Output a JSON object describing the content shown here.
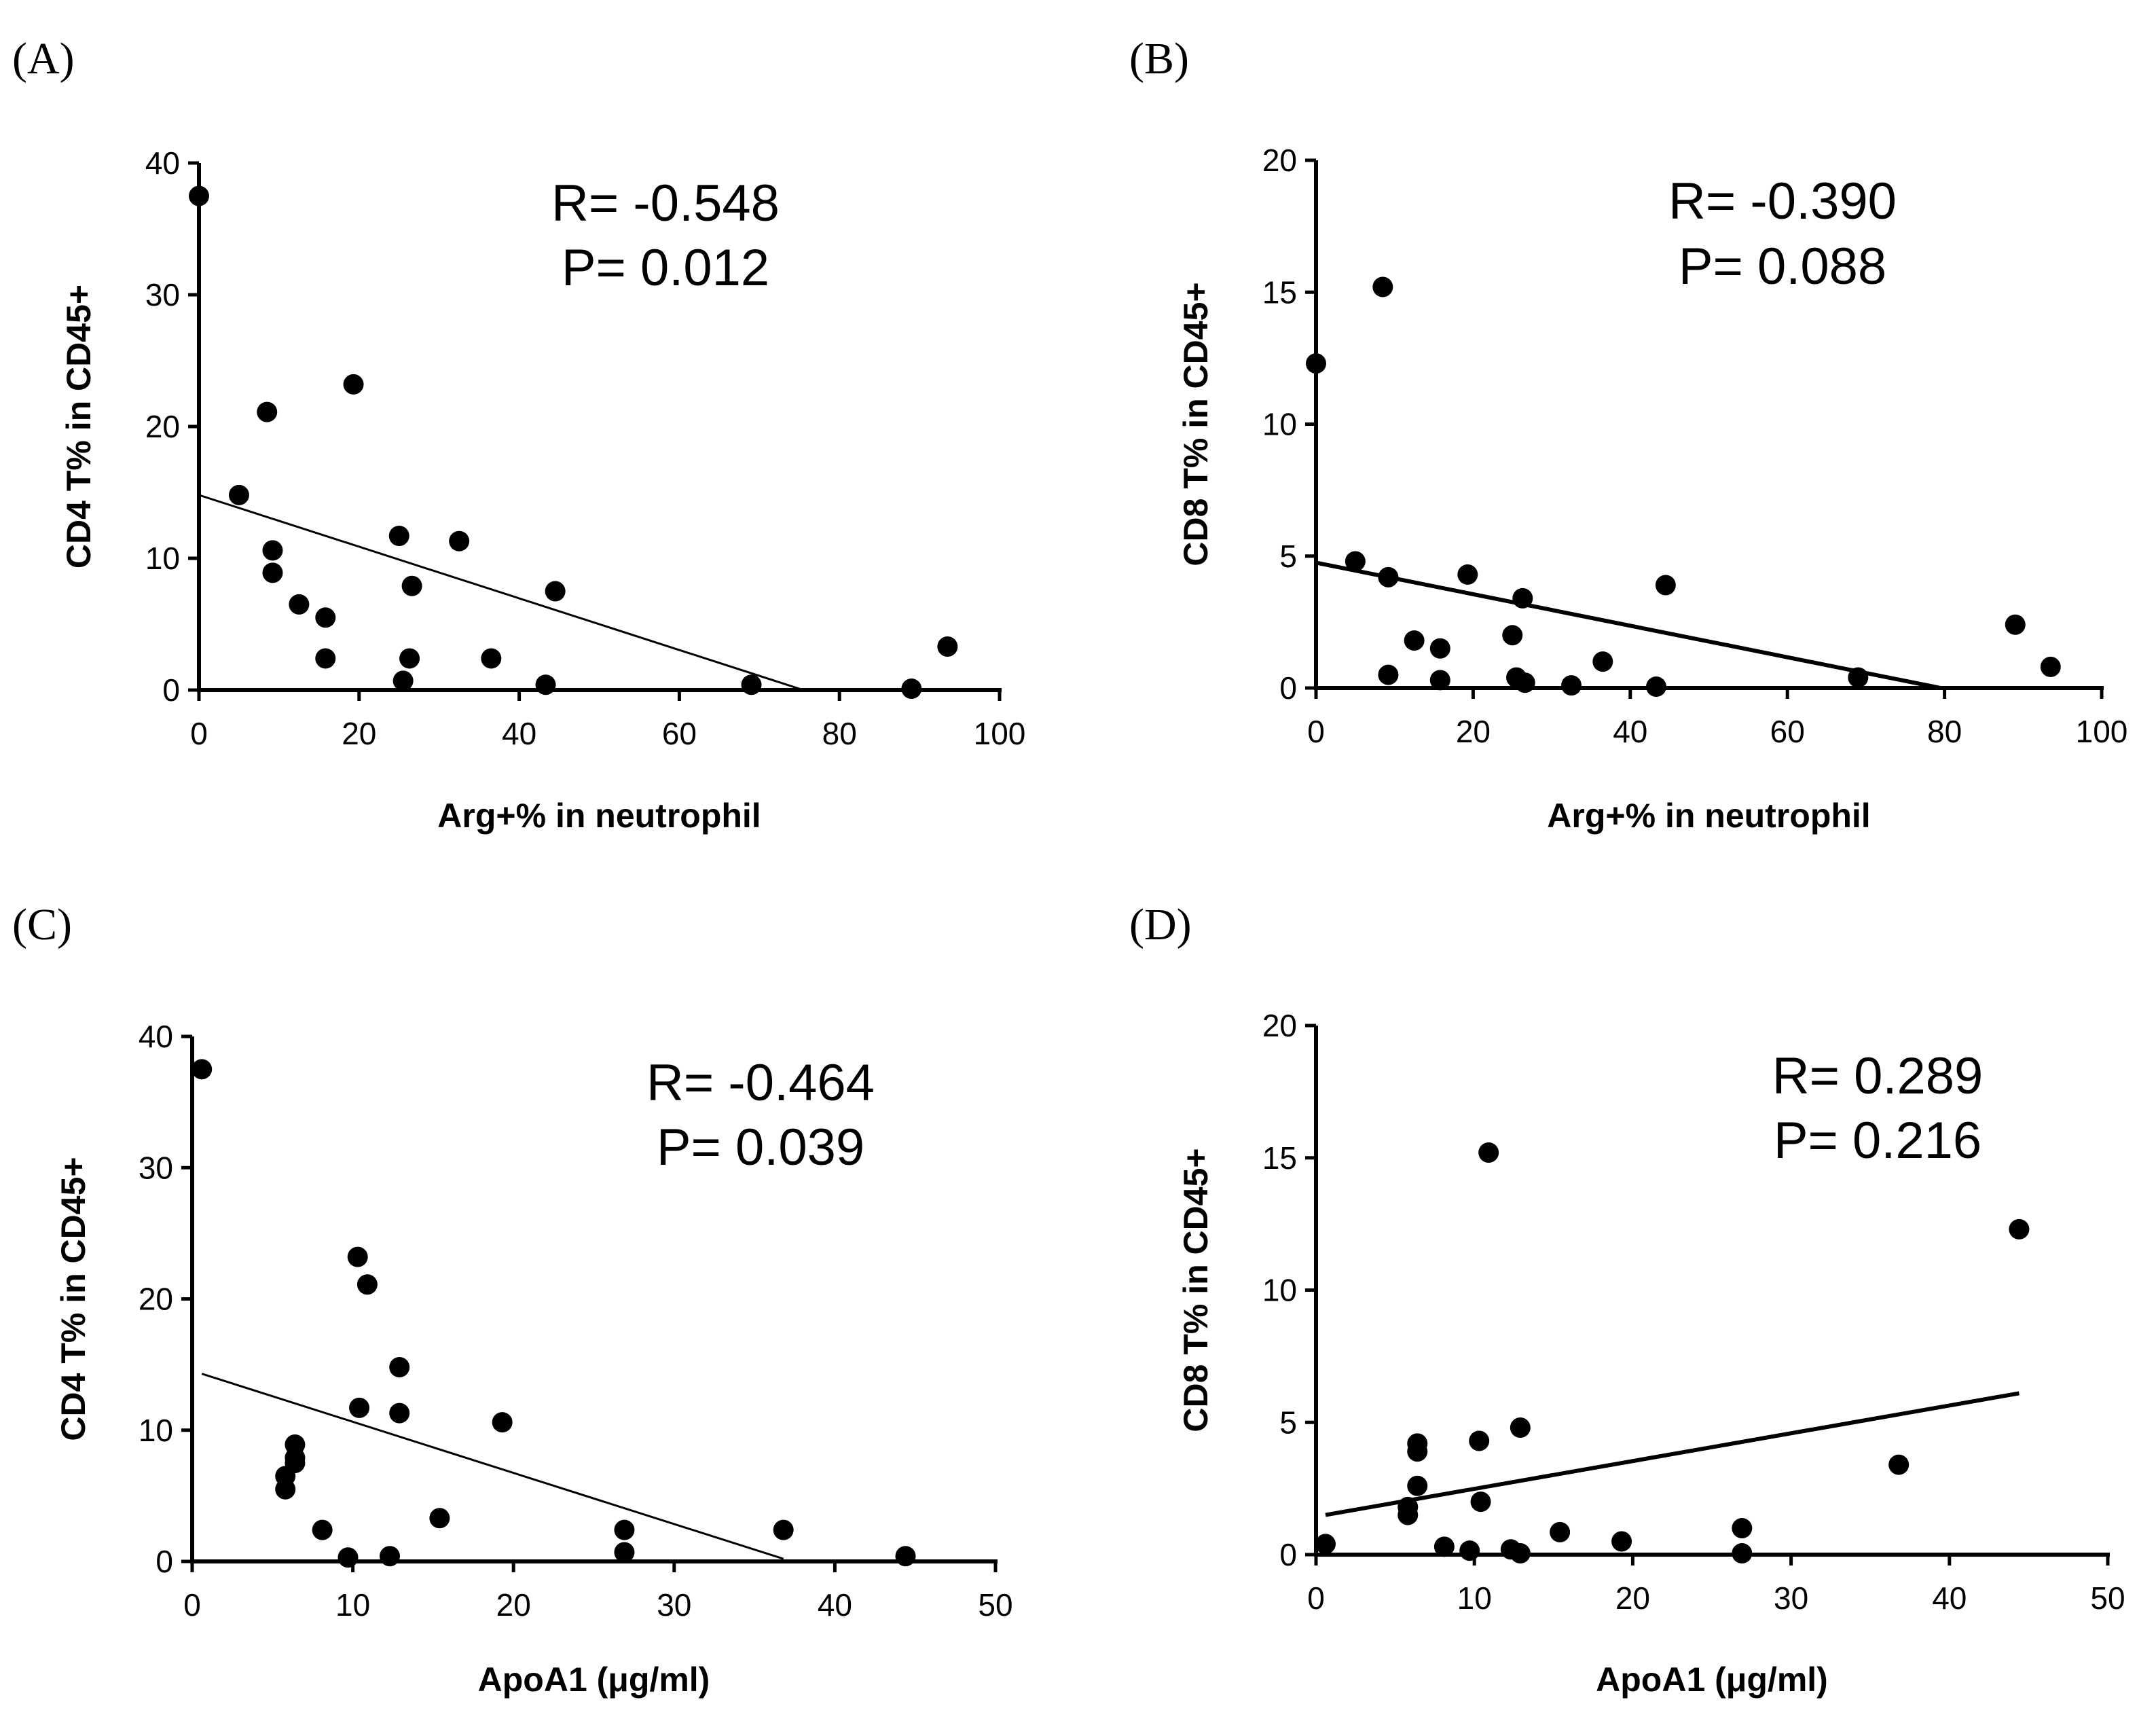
{
  "chart_data": [
    {
      "type": "scatter",
      "panel": "(A)",
      "xlabel": "Arg+% in neutrophil",
      "ylabel": "CD4 T% in CD45+",
      "xlim": [
        0,
        100
      ],
      "ylim": [
        0,
        40
      ],
      "xticks": [
        0,
        20,
        40,
        60,
        80,
        100
      ],
      "yticks": [
        0,
        10,
        20,
        30,
        40
      ],
      "xtick_labels": [
        "0",
        "20",
        "40",
        "60",
        "80",
        "100"
      ],
      "ytick_labels": [
        "0",
        "10",
        "20",
        "30",
        "40"
      ],
      "annotations": [
        "R= -0.548",
        "P= 0.012"
      ],
      "points": [
        [
          0,
          37.5
        ],
        [
          5,
          14.8
        ],
        [
          8.5,
          21.1
        ],
        [
          9.2,
          10.6
        ],
        [
          9.2,
          8.9
        ],
        [
          12.5,
          6.5
        ],
        [
          15.8,
          5.5
        ],
        [
          15.8,
          2.4
        ],
        [
          19.3,
          23.2
        ],
        [
          25,
          11.7
        ],
        [
          25.5,
          0.7
        ],
        [
          26.3,
          2.4
        ],
        [
          26.6,
          7.9
        ],
        [
          32.5,
          11.3
        ],
        [
          36.5,
          2.4
        ],
        [
          43.3,
          0.4
        ],
        [
          44.5,
          7.5
        ],
        [
          69,
          0.4
        ],
        [
          89,
          0.1
        ],
        [
          93.5,
          3.3
        ]
      ],
      "fit_line": [
        [
          0,
          14.8
        ],
        [
          75.5,
          0
        ]
      ]
    },
    {
      "type": "scatter",
      "panel": "(B)",
      "xlabel": "Arg+% in neutrophil",
      "ylabel": "CD8 T% in CD45+",
      "xlim": [
        0,
        100
      ],
      "ylim": [
        0,
        20
      ],
      "xticks": [
        0,
        20,
        40,
        60,
        80,
        100
      ],
      "yticks": [
        0,
        5,
        10,
        15,
        20
      ],
      "xtick_labels": [
        "0",
        "20",
        "40",
        "60",
        "80",
        "100"
      ],
      "ytick_labels": [
        "0",
        "5",
        "10",
        "15",
        "20"
      ],
      "annotations": [
        "R= -0.390",
        "P= 0.088"
      ],
      "points": [
        [
          0,
          12.3
        ],
        [
          5,
          4.8
        ],
        [
          8.5,
          15.2
        ],
        [
          9.2,
          4.2
        ],
        [
          9.2,
          0.5
        ],
        [
          12.5,
          1.8
        ],
        [
          15.8,
          1.5
        ],
        [
          15.8,
          0.3
        ],
        [
          19.3,
          4.3
        ],
        [
          25,
          2
        ],
        [
          25.5,
          0.4
        ],
        [
          26.3,
          3.4
        ],
        [
          26.6,
          0.2
        ],
        [
          32.5,
          0.1
        ],
        [
          36.5,
          1
        ],
        [
          43.3,
          0.05
        ],
        [
          44.5,
          3.9
        ],
        [
          69,
          0.4
        ],
        [
          89,
          2.4
        ],
        [
          93.5,
          0.8
        ]
      ],
      "fit_line": [
        [
          0,
          4.75
        ],
        [
          79.5,
          0
        ]
      ]
    },
    {
      "type": "scatter",
      "panel": "(C)",
      "xlabel": "ApoA1 (μg/ml)",
      "ylabel": "CD4 T% in CD45+",
      "xlim": [
        0,
        50
      ],
      "ylim": [
        0,
        40
      ],
      "xticks": [
        0,
        10,
        20,
        30,
        40,
        50
      ],
      "yticks": [
        0,
        10,
        20,
        30,
        40
      ],
      "xtick_labels": [
        "0",
        "10",
        "20",
        "30",
        "40",
        "50"
      ],
      "ytick_labels": [
        "0",
        "10",
        "20",
        "30",
        "40"
      ],
      "annotations": [
        "R= -0.464",
        "P= 0.039"
      ],
      "points": [
        [
          0.6,
          37.5
        ],
        [
          5.8,
          6.5
        ],
        [
          5.8,
          5.5
        ],
        [
          6.4,
          8.9
        ],
        [
          6.4,
          7.9
        ],
        [
          6.4,
          7.5
        ],
        [
          8.1,
          2.4
        ],
        [
          9.7,
          0.3
        ],
        [
          10.3,
          23.2
        ],
        [
          10.4,
          11.7
        ],
        [
          10.9,
          21.1
        ],
        [
          12.3,
          0.4
        ],
        [
          12.9,
          14.8
        ],
        [
          12.9,
          11.3
        ],
        [
          15.4,
          3.3
        ],
        [
          19.3,
          10.6
        ],
        [
          26.9,
          2.4
        ],
        [
          26.9,
          0.7
        ],
        [
          36.8,
          2.4
        ],
        [
          44.4,
          0.4
        ]
      ],
      "fit_line": [
        [
          0.6,
          14.3
        ],
        [
          36.8,
          0.2
        ]
      ]
    },
    {
      "type": "scatter",
      "panel": "(D)",
      "xlabel": "ApoA1 (μg/ml)",
      "ylabel": "CD8 T% in CD45+",
      "xlim": [
        0,
        50
      ],
      "ylim": [
        0,
        20
      ],
      "xticks": [
        0,
        10,
        20,
        30,
        40,
        50
      ],
      "yticks": [
        0,
        5,
        10,
        15,
        20
      ],
      "xtick_labels": [
        "0",
        "10",
        "20",
        "30",
        "40",
        "50"
      ],
      "ytick_labels": [
        "0",
        "5",
        "10",
        "15",
        "20"
      ],
      "annotations": [
        "R= 0.289",
        "P= 0.216"
      ],
      "points": [
        [
          0.6,
          0.4
        ],
        [
          5.8,
          1.8
        ],
        [
          5.8,
          1.5
        ],
        [
          6.4,
          4.2
        ],
        [
          6.4,
          3.9
        ],
        [
          6.4,
          2.6
        ],
        [
          8.1,
          0.3
        ],
        [
          9.7,
          0.15
        ],
        [
          10.3,
          4.3
        ],
        [
          10.4,
          2
        ],
        [
          10.9,
          15.2
        ],
        [
          12.3,
          0.2
        ],
        [
          12.9,
          4.8
        ],
        [
          12.9,
          0.05
        ],
        [
          15.4,
          0.85
        ],
        [
          19.3,
          0.5
        ],
        [
          26.9,
          1
        ],
        [
          26.9,
          0.05
        ],
        [
          36.8,
          3.4
        ],
        [
          44.4,
          12.3
        ]
      ],
      "fit_line": [
        [
          0.6,
          1.5
        ],
        [
          44.4,
          6.1
        ]
      ]
    }
  ]
}
